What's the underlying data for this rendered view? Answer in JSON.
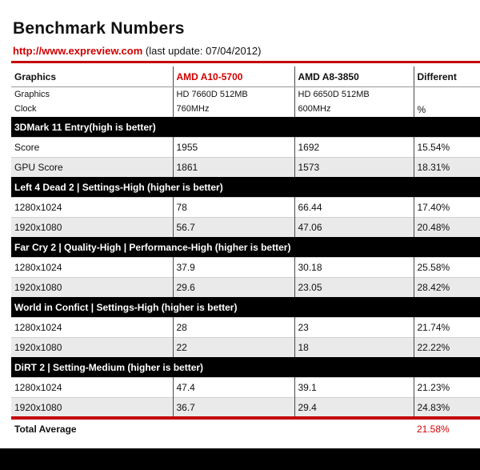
{
  "title": "Benchmark Numbers",
  "source_url": "http://www.expreview.com",
  "last_update": "(last update: 07/04/2012)",
  "header": {
    "col1": "Graphics",
    "col2": "AMD A10-5700",
    "col3": "AMD A8-3850",
    "col4": "Different"
  },
  "meta": {
    "label_line1": "Graphics",
    "label_line2": "Clock",
    "a10_line1": "HD 7660D 512MB",
    "a10_line2": "760MHz",
    "a8_line1": "HD 6650D 512MB",
    "a8_line2": "600MHz",
    "diff_unit": "%"
  },
  "sections": [
    {
      "title": "3DMark 11 Entry(high is better)",
      "rows": [
        {
          "label": "Score",
          "a10": "1955",
          "a8": "1692",
          "diff": "15.54%"
        },
        {
          "label": "GPU Score",
          "a10": "1861",
          "a8": "1573",
          "diff": "18.31%"
        }
      ]
    },
    {
      "title": "Left 4 Dead 2 |  Settings-High (higher is better)",
      "rows": [
        {
          "label": "1280x1024",
          "a10": "78",
          "a8": "66.44",
          "diff": "17.40%"
        },
        {
          "label": "1920x1080",
          "a10": "56.7",
          "a8": "47.06",
          "diff": "20.48%"
        }
      ]
    },
    {
      "title": "Far Cry 2 | Quality-High | Performance-High  (higher is better)",
      "rows": [
        {
          "label": "1280x1024",
          "a10": "37.9",
          "a8": "30.18",
          "diff": "25.58%"
        },
        {
          "label": "1920x1080",
          "a10": "29.6",
          "a8": "23.05",
          "diff": "28.42%"
        }
      ]
    },
    {
      "title": "World in Confict | Settings-High (higher is better)",
      "rows": [
        {
          "label": "1280x1024",
          "a10": "28",
          "a8": "23",
          "diff": "21.74%"
        },
        {
          "label": "1920x1080",
          "a10": "22",
          "a8": "18",
          "diff": "22.22%"
        }
      ]
    },
    {
      "title": "DiRT 2 |  Setting-Medium (higher is better)",
      "rows": [
        {
          "label": "1280x1024",
          "a10": "47.4",
          "a8": "39.1",
          "diff": "21.23%"
        },
        {
          "label": "1920x1080",
          "a10": "36.7",
          "a8": "29.4",
          "diff": "24.83%"
        }
      ]
    }
  ],
  "total": {
    "label": "Total Average",
    "value": "21.58%"
  },
  "colors": {
    "accent_red": "#d00000",
    "section_bg": "#000000",
    "alt_row_bg": "#eaeaea"
  }
}
